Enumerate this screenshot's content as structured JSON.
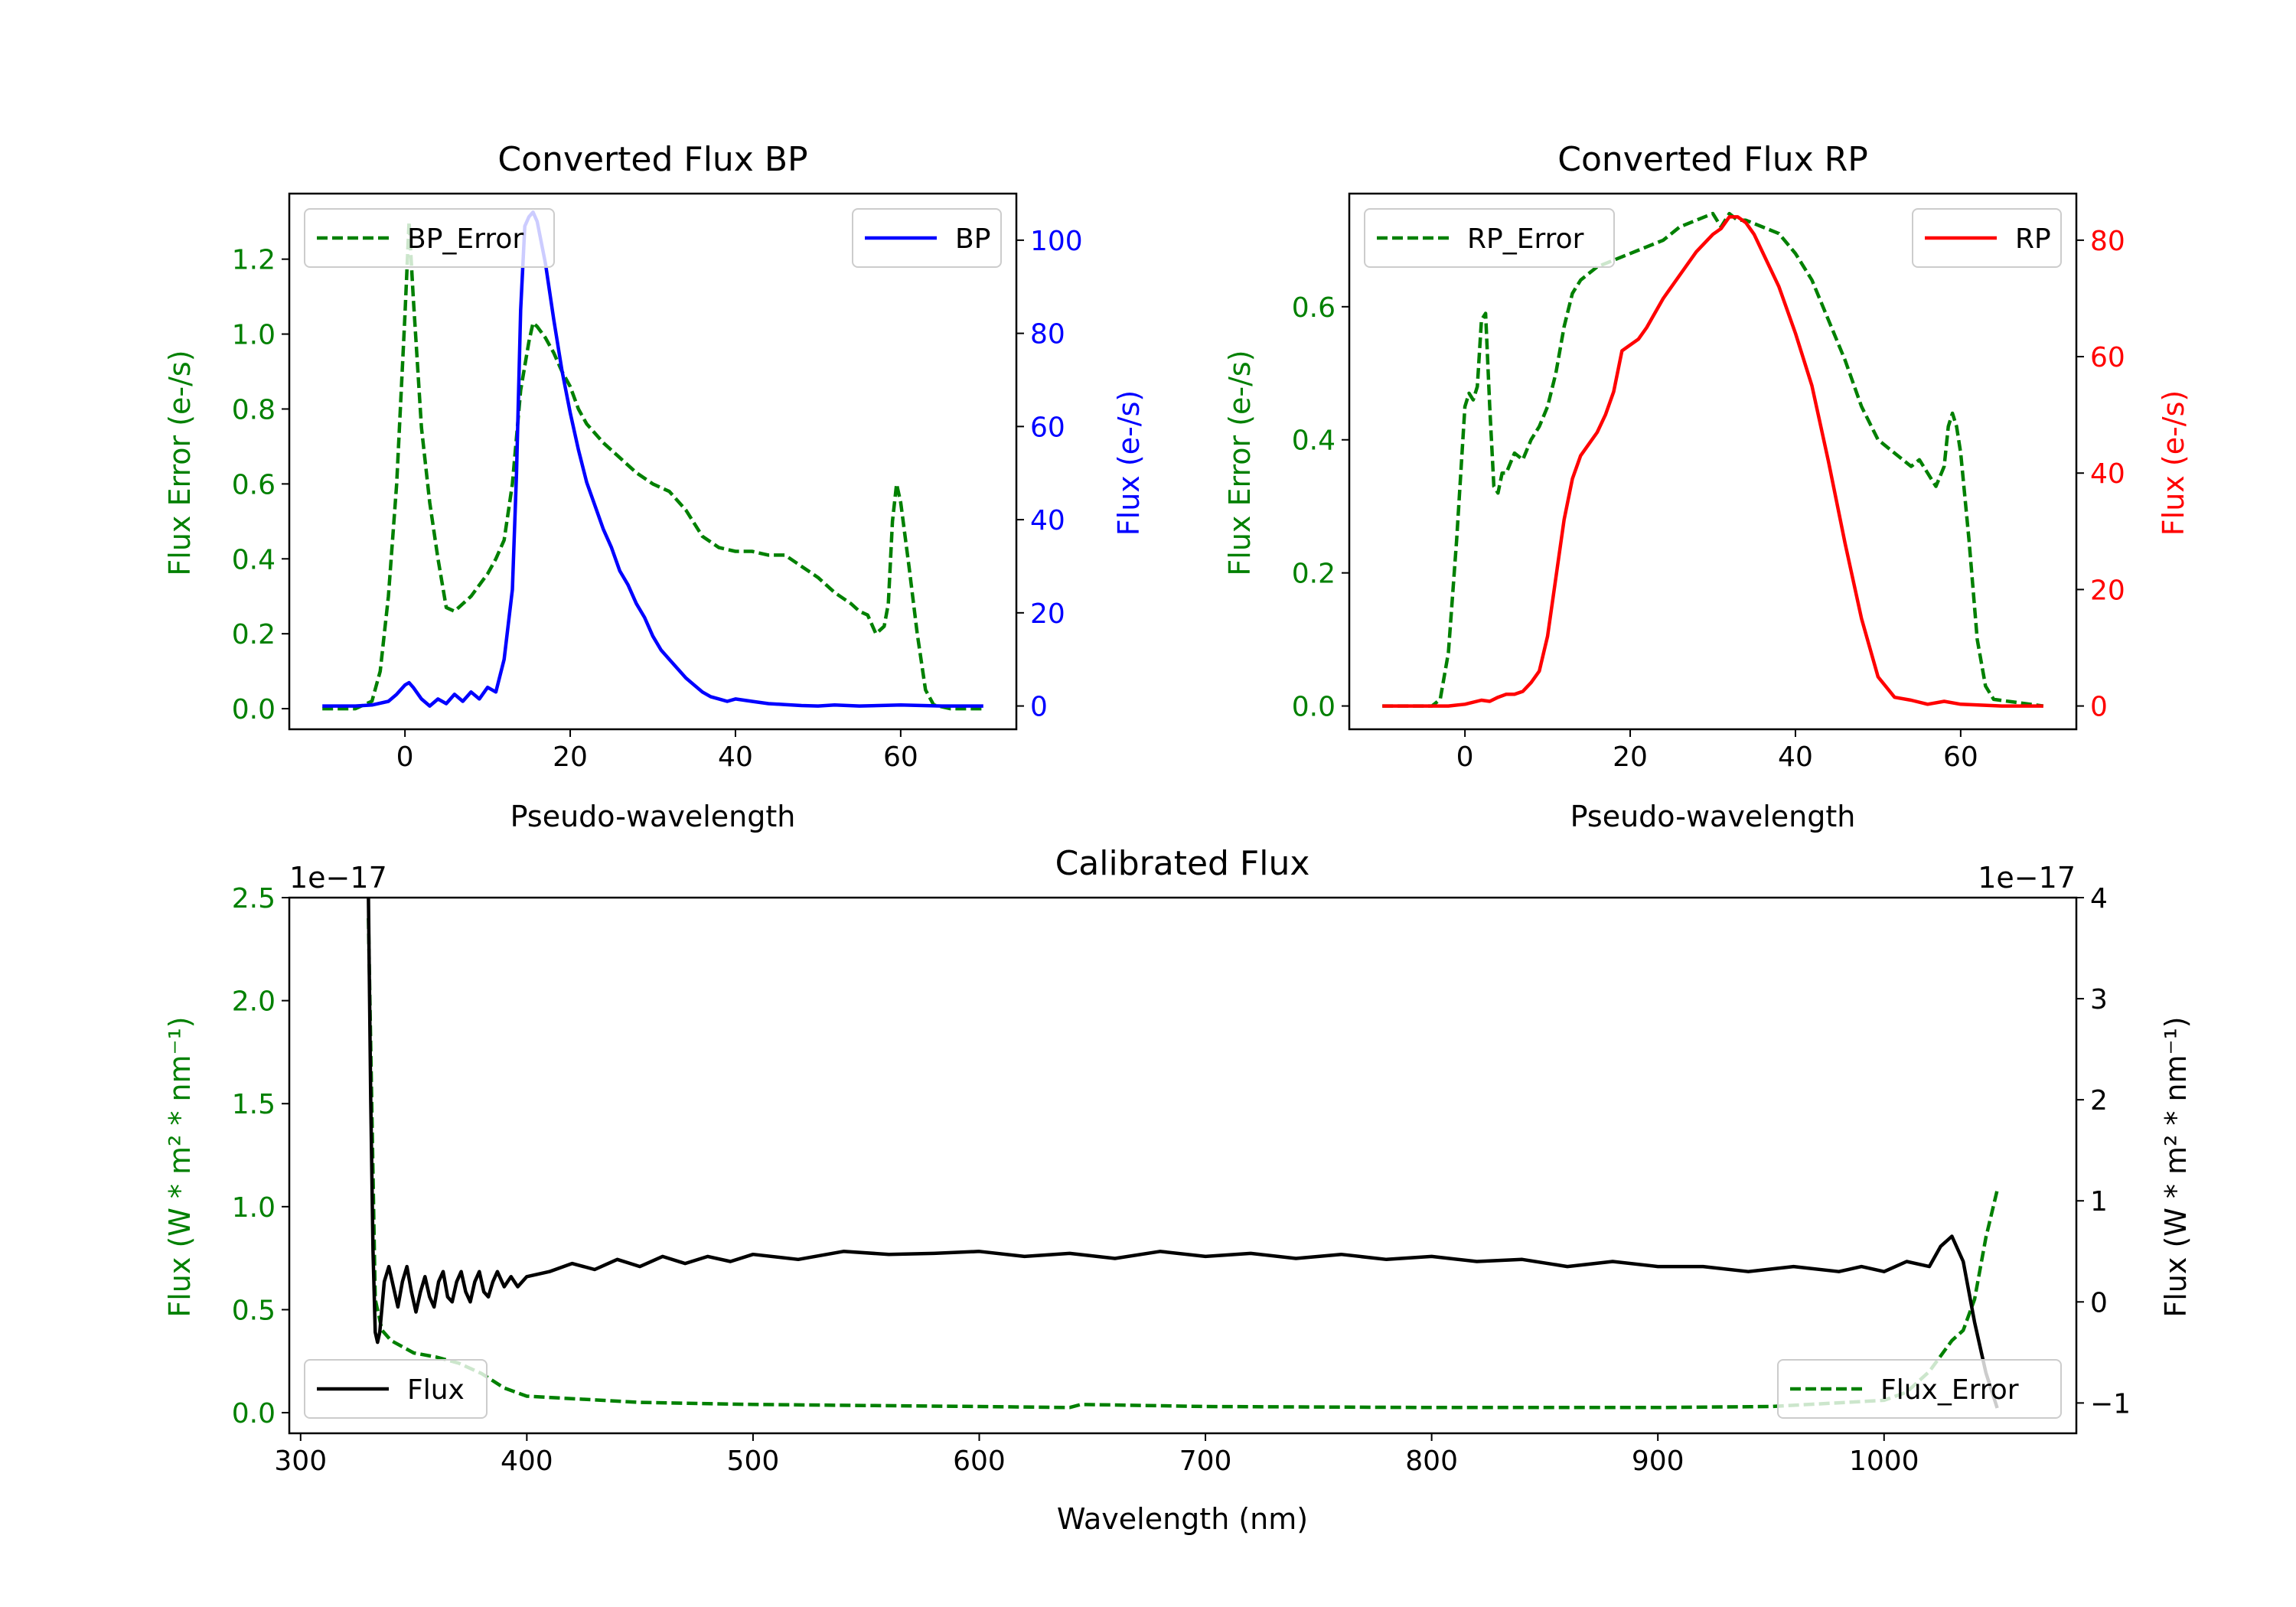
{
  "chart_data": [
    {
      "type": "line",
      "title": "Converted Flux BP",
      "xlabel": "Pseudo-wavelength",
      "xlim": [
        -14,
        74
      ],
      "xticks": [
        0,
        20,
        40,
        60
      ],
      "left_axis": {
        "label": "Flux Error (e-/s)",
        "color": "#008000",
        "ylim": [
          -0.055,
          1.375
        ],
        "ticks": [
          "0.0",
          "0.2",
          "0.4",
          "0.6",
          "0.8",
          "1.0",
          "1.2"
        ]
      },
      "right_axis": {
        "label": "Flux (e-/s)",
        "color": "#0000ff",
        "ylim": [
          -5,
          110
        ],
        "ticks": [
          "0",
          "20",
          "40",
          "60",
          "80",
          "100"
        ]
      },
      "legend_left": {
        "position": "top-left",
        "label": "BP_Error"
      },
      "legend_right": {
        "position": "top-right",
        "label": "BP"
      },
      "series": [
        {
          "name": "BP_Error",
          "axis": "left",
          "color": "#008000",
          "style": "dashed",
          "x": [
            -10,
            -6,
            -4,
            -3,
            -2,
            -1,
            0,
            0.5,
            1,
            2,
            3,
            4,
            5,
            6,
            7,
            8,
            9,
            10,
            11,
            12,
            13,
            14,
            15,
            15.5,
            16,
            17,
            18,
            19,
            20,
            21,
            22,
            24,
            26,
            28,
            30,
            32,
            34,
            36,
            38,
            40,
            42,
            44,
            46,
            48,
            50,
            52,
            54,
            55,
            56,
            57,
            58,
            58.5,
            59,
            59.5,
            60,
            61,
            62,
            63,
            64,
            66,
            70
          ],
          "y": [
            0,
            0,
            0.02,
            0.1,
            0.3,
            0.6,
            1.05,
            1.3,
            1.1,
            0.75,
            0.55,
            0.4,
            0.27,
            0.26,
            0.28,
            0.3,
            0.33,
            0.36,
            0.4,
            0.45,
            0.6,
            0.85,
            0.98,
            1.03,
            1.02,
            0.99,
            0.95,
            0.9,
            0.86,
            0.8,
            0.76,
            0.71,
            0.67,
            0.63,
            0.6,
            0.58,
            0.53,
            0.46,
            0.43,
            0.42,
            0.42,
            0.41,
            0.41,
            0.38,
            0.35,
            0.31,
            0.28,
            0.26,
            0.25,
            0.2,
            0.22,
            0.28,
            0.5,
            0.6,
            0.55,
            0.38,
            0.2,
            0.05,
            0.01,
            0,
            0
          ]
        },
        {
          "name": "BP",
          "axis": "right",
          "color": "#0000ff",
          "style": "solid",
          "x": [
            -10,
            -6,
            -4,
            -2,
            -1,
            0,
            0.5,
            1,
            2,
            3,
            4,
            5,
            6,
            7,
            8,
            9,
            10,
            11,
            12,
            13,
            13.5,
            14,
            14.5,
            15,
            15.5,
            16,
            17,
            18,
            19,
            20,
            21,
            22,
            23,
            24,
            25,
            26,
            27,
            28,
            29,
            30,
            31,
            32,
            33,
            34,
            35,
            36,
            37,
            38,
            39,
            40,
            42,
            44,
            46,
            48,
            50,
            52,
            55,
            60,
            65,
            70
          ],
          "y": [
            0,
            0,
            0.2,
            1,
            2.5,
            4.5,
            5,
            4,
            1.5,
            0,
            1.5,
            0.5,
            2.5,
            1,
            3,
            1.5,
            4,
            3,
            10,
            25,
            50,
            85,
            103,
            105,
            106,
            104,
            95,
            83,
            72,
            63,
            55,
            48,
            43,
            38,
            34,
            29,
            26,
            22,
            19,
            15,
            12,
            10,
            8,
            6,
            4.5,
            3,
            2,
            1.5,
            1,
            1.5,
            1,
            0.5,
            0.3,
            0.1,
            0,
            0.2,
            0,
            0.2,
            0,
            0
          ]
        }
      ]
    },
    {
      "type": "line",
      "title": "Converted Flux RP",
      "xlabel": "Pseudo-wavelength",
      "xlim": [
        -14,
        74
      ],
      "xticks": [
        0,
        20,
        40,
        60
      ],
      "left_axis": {
        "label": "Flux Error (e-/s)",
        "color": "#008000",
        "ylim": [
          -0.035,
          0.77
        ],
        "ticks": [
          "0.0",
          "0.2",
          "0.4",
          "0.6"
        ]
      },
      "right_axis": {
        "label": "Flux (e-/s)",
        "color": "#ff0000",
        "ylim": [
          -4,
          88
        ],
        "ticks": [
          "0",
          "20",
          "40",
          "60",
          "80"
        ]
      },
      "legend_left": {
        "position": "top-left",
        "label": "RP_Error"
      },
      "legend_right": {
        "position": "top-right",
        "label": "RP"
      },
      "series": [
        {
          "name": "RP_Error",
          "axis": "left",
          "color": "#008000",
          "style": "dashed",
          "x": [
            -10,
            -4,
            -3,
            -2,
            -1,
            0,
            0.5,
            1,
            1.5,
            2,
            2.5,
            3,
            3.5,
            4,
            4.5,
            5,
            6,
            7,
            8,
            9,
            10,
            11,
            12,
            13,
            14,
            15,
            16,
            18,
            20,
            22,
            24,
            26,
            28,
            30,
            31,
            32,
            33,
            34,
            36,
            38,
            40,
            42,
            44,
            46,
            48,
            50,
            52,
            53,
            54,
            55,
            56,
            57,
            58,
            58.5,
            59,
            59.5,
            60,
            61,
            62,
            63,
            64,
            70
          ],
          "y": [
            0,
            0,
            0.01,
            0.08,
            0.25,
            0.45,
            0.47,
            0.46,
            0.48,
            0.58,
            0.59,
            0.45,
            0.33,
            0.32,
            0.35,
            0.35,
            0.38,
            0.37,
            0.4,
            0.42,
            0.45,
            0.5,
            0.57,
            0.62,
            0.64,
            0.65,
            0.66,
            0.67,
            0.68,
            0.69,
            0.7,
            0.72,
            0.73,
            0.74,
            0.72,
            0.74,
            0.73,
            0.73,
            0.72,
            0.71,
            0.68,
            0.64,
            0.58,
            0.52,
            0.45,
            0.4,
            0.38,
            0.37,
            0.36,
            0.37,
            0.35,
            0.33,
            0.36,
            0.42,
            0.44,
            0.42,
            0.38,
            0.25,
            0.1,
            0.03,
            0.01,
            0
          ]
        },
        {
          "name": "RP",
          "axis": "right",
          "color": "#ff0000",
          "style": "solid",
          "x": [
            -10,
            -2,
            0,
            2,
            3,
            4,
            5,
            6,
            7,
            8,
            9,
            10,
            11,
            12,
            13,
            14,
            15,
            16,
            17,
            18,
            19,
            20,
            21,
            22,
            24,
            26,
            28,
            30,
            31,
            32,
            33,
            34,
            35,
            36,
            38,
            40,
            42,
            44,
            46,
            48,
            50,
            52,
            54,
            56,
            58,
            60,
            65,
            70
          ],
          "y": [
            0,
            0,
            0.3,
            1,
            0.8,
            1.5,
            2,
            2,
            2.5,
            4,
            6,
            12,
            22,
            32,
            39,
            43,
            45,
            47,
            50,
            54,
            61,
            62,
            63,
            65,
            70,
            74,
            78,
            81,
            82,
            84,
            84,
            83,
            81,
            78,
            72,
            64,
            55,
            42,
            28,
            15,
            5,
            1.5,
            1,
            0.3,
            0.8,
            0.3,
            0,
            0
          ]
        }
      ]
    },
    {
      "type": "line",
      "title": "Calibrated Flux",
      "xlabel": "Wavelength (nm)",
      "xlim": [
        295,
        1085
      ],
      "xticks": [
        300,
        400,
        500,
        600,
        700,
        800,
        900,
        1000
      ],
      "left_axis": {
        "label": "Flux (W * m² * nm⁻¹)",
        "color": "#008000",
        "ylim": [
          -0.1,
          2.5
        ],
        "ticks": [
          "0.0",
          "0.5",
          "1.0",
          "1.5",
          "2.0",
          "2.5"
        ],
        "offset_text": "1e−17"
      },
      "right_axis": {
        "label": "Flux (W * m² * nm⁻¹)",
        "color": "#000000",
        "ylim": [
          -1.3,
          4.0
        ],
        "ticks": [
          "−1",
          "0",
          "1",
          "2",
          "3",
          "4"
        ],
        "offset_text": "1e−17"
      },
      "legend_left": {
        "position": "bottom-left",
        "label": "Flux"
      },
      "legend_right": {
        "position": "bottom-right",
        "label": "Flux_Error"
      },
      "series": [
        {
          "name": "Flux_Error",
          "axis": "left",
          "color": "#008000",
          "style": "dashed",
          "x": [
            330,
            333,
            336,
            340,
            345,
            350,
            360,
            370,
            380,
            390,
            400,
            450,
            500,
            550,
            600,
            640,
            645,
            700,
            800,
            900,
            950,
            1000,
            1010,
            1020,
            1030,
            1035,
            1040,
            1045,
            1050
          ],
          "y": [
            2.4,
            0.55,
            0.4,
            0.35,
            0.32,
            0.29,
            0.27,
            0.24,
            0.19,
            0.12,
            0.08,
            0.05,
            0.04,
            0.035,
            0.03,
            0.025,
            0.04,
            0.03,
            0.025,
            0.025,
            0.03,
            0.06,
            0.1,
            0.2,
            0.35,
            0.4,
            0.55,
            0.85,
            1.08
          ]
        },
        {
          "name": "Flux",
          "axis": "right",
          "color": "#000000",
          "style": "solid",
          "x": [
            330,
            331,
            332,
            333,
            334,
            335,
            337,
            339,
            341,
            343,
            345,
            347,
            349,
            351,
            353,
            355,
            357,
            359,
            361,
            363,
            365,
            367,
            369,
            371,
            373,
            375,
            377,
            379,
            381,
            383,
            385,
            387,
            390,
            393,
            396,
            400,
            410,
            420,
            430,
            440,
            450,
            460,
            470,
            480,
            490,
            500,
            520,
            540,
            560,
            580,
            600,
            620,
            640,
            660,
            680,
            700,
            720,
            740,
            760,
            780,
            800,
            820,
            840,
            860,
            880,
            900,
            920,
            940,
            960,
            980,
            990,
            1000,
            1010,
            1020,
            1025,
            1030,
            1035,
            1040,
            1045,
            1050
          ],
          "y": [
            4.0,
            2.0,
            0.5,
            -0.3,
            -0.4,
            -0.3,
            0.2,
            0.35,
            0.15,
            -0.05,
            0.2,
            0.35,
            0.1,
            -0.1,
            0.1,
            0.25,
            0.05,
            -0.05,
            0.2,
            0.3,
            0.05,
            0.0,
            0.2,
            0.3,
            0.1,
            0.0,
            0.2,
            0.3,
            0.1,
            0.05,
            0.2,
            0.3,
            0.15,
            0.25,
            0.15,
            0.25,
            0.3,
            0.38,
            0.32,
            0.42,
            0.35,
            0.45,
            0.38,
            0.45,
            0.4,
            0.47,
            0.42,
            0.5,
            0.47,
            0.48,
            0.5,
            0.45,
            0.48,
            0.43,
            0.5,
            0.45,
            0.48,
            0.43,
            0.47,
            0.42,
            0.45,
            0.4,
            0.42,
            0.35,
            0.4,
            0.35,
            0.35,
            0.3,
            0.35,
            0.3,
            0.35,
            0.3,
            0.4,
            0.35,
            0.55,
            0.65,
            0.4,
            -0.2,
            -0.7,
            -1.05
          ]
        }
      ]
    }
  ]
}
